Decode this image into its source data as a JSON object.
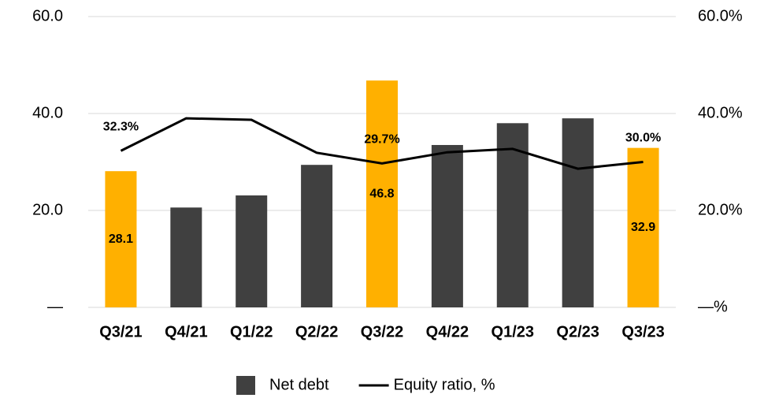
{
  "chart_data": {
    "type": "bar",
    "categories": [
      "Q3/21",
      "Q4/21",
      "Q1/22",
      "Q2/22",
      "Q3/22",
      "Q4/22",
      "Q1/23",
      "Q2/23",
      "Q3/23"
    ],
    "series": [
      {
        "name": "Net debt",
        "type": "bar",
        "color": "#404040",
        "colors": [
          "#FFB000",
          "#404040",
          "#404040",
          "#404040",
          "#FFB000",
          "#404040",
          "#404040",
          "#404040",
          "#FFB000"
        ],
        "values": [
          28.1,
          20.6,
          23.1,
          29.4,
          46.8,
          33.5,
          38.0,
          39.0,
          32.9
        ],
        "value_labels": [
          "28.1",
          null,
          null,
          null,
          "46.8",
          null,
          null,
          null,
          "32.9"
        ]
      },
      {
        "name": "Equity ratio, %",
        "type": "line",
        "axis": "y2",
        "color": "#000000",
        "values": [
          32.3,
          39.0,
          38.7,
          31.9,
          29.7,
          32.0,
          32.7,
          28.6,
          30.0
        ],
        "value_labels": [
          "32.3%",
          null,
          null,
          null,
          "29.7%",
          null,
          null,
          null,
          "30.0%"
        ]
      }
    ],
    "ylim": [
      0,
      60
    ],
    "yticks": [
      {
        "value": 0,
        "label": "—"
      },
      {
        "value": 20,
        "label": "20.0"
      },
      {
        "value": 40,
        "label": "40.0"
      },
      {
        "value": 60,
        "label": "60.0"
      }
    ],
    "y2lim": [
      0,
      60
    ],
    "y2ticks": [
      {
        "value": 0,
        "label": "—%"
      },
      {
        "value": 20,
        "label": "20.0%"
      },
      {
        "value": 40,
        "label": "40.0%"
      },
      {
        "value": 60,
        "label": "60.0%"
      }
    ],
    "grid": true,
    "legend": "bottom"
  }
}
